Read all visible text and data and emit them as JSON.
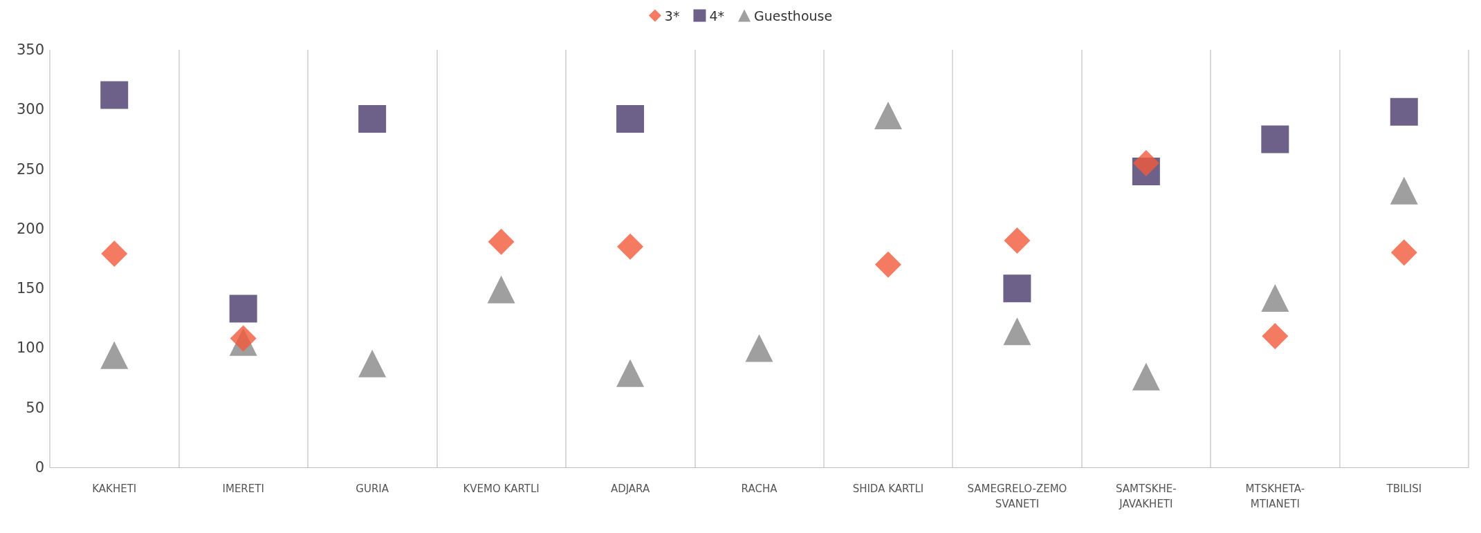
{
  "chart_data": {
    "type": "scatter",
    "categories": [
      "KAKHETI",
      "IMERETI",
      "GURIA",
      "KVEMO KARTLI",
      "ADJARA",
      "RACHA",
      "SHIDA KARTLI",
      "SAMEGRELO-ZEMO\nSVANETI",
      "SAMTSKHE-\nJAVAKHETI",
      "MTSKHETA-\nMTIANETI",
      "TBILISI"
    ],
    "series": [
      {
        "name": "3*",
        "color": "#f15a3b",
        "marker": "diamond",
        "values": [
          179,
          108,
          null,
          189,
          185,
          null,
          170,
          190,
          255,
          110,
          180
        ]
      },
      {
        "name": "4*",
        "color": "#4a3a6b",
        "marker": "square",
        "values": [
          312,
          133,
          292,
          null,
          292,
          null,
          null,
          150,
          248,
          275,
          298
        ]
      },
      {
        "name": "Guesthouse",
        "color": "#878787",
        "marker": "triangle",
        "values": [
          94,
          105,
          87,
          149,
          79,
          100,
          295,
          114,
          76,
          142,
          232
        ]
      }
    ],
    "ylim": [
      0,
      350
    ],
    "yticks": [
      0,
      50,
      100,
      150,
      200,
      250,
      300,
      350
    ],
    "grid": "x",
    "legend": "top"
  }
}
